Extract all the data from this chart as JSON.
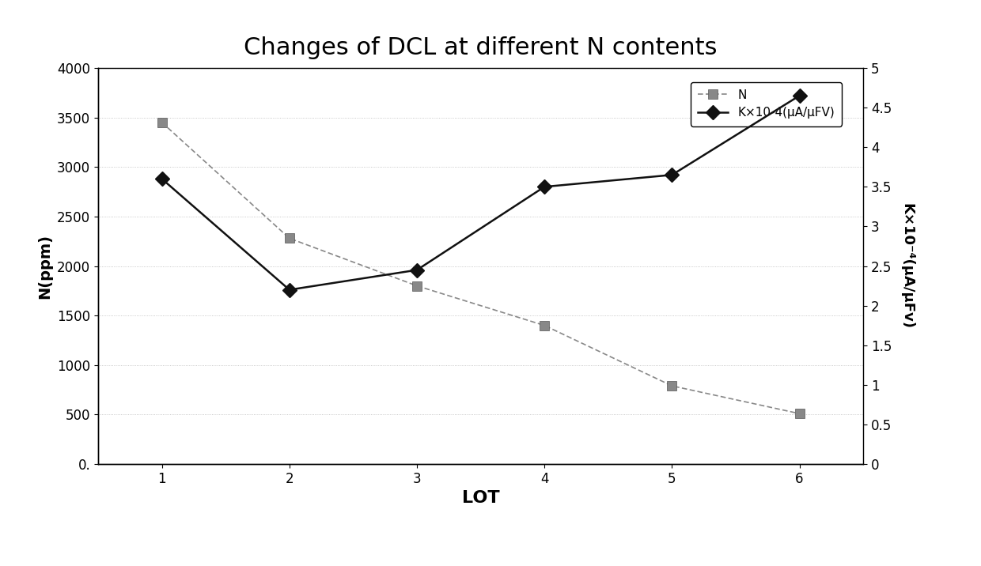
{
  "title": "Changes of DCL at different N contents",
  "xlabel": "LOT",
  "ylabel_left": "N(ppm)",
  "ylabel_right": "K×10⁻⁴(μA/μFv)",
  "x": [
    1,
    2,
    3,
    4,
    5,
    6
  ],
  "N_values": [
    3450,
    2280,
    1800,
    1400,
    790,
    510
  ],
  "K_values": [
    3.6,
    2.2,
    2.45,
    3.5,
    3.65,
    4.65
  ],
  "N_color": "#888888",
  "K_color": "#111111",
  "ylim_left": [
    0,
    4000
  ],
  "ylim_right": [
    0,
    5
  ],
  "yticks_left": [
    0,
    500,
    1000,
    1500,
    2000,
    2500,
    3000,
    3500,
    4000
  ],
  "yticks_right": [
    0,
    0.5,
    1,
    1.5,
    2,
    2.5,
    3,
    3.5,
    4,
    4.5,
    5
  ],
  "legend_N": "N",
  "legend_K": "K×10-4(μA/μFV)",
  "background_color": "#ffffff",
  "title_fontsize": 22,
  "label_fontsize": 13,
  "tick_fontsize": 12,
  "legend_fontsize": 11
}
